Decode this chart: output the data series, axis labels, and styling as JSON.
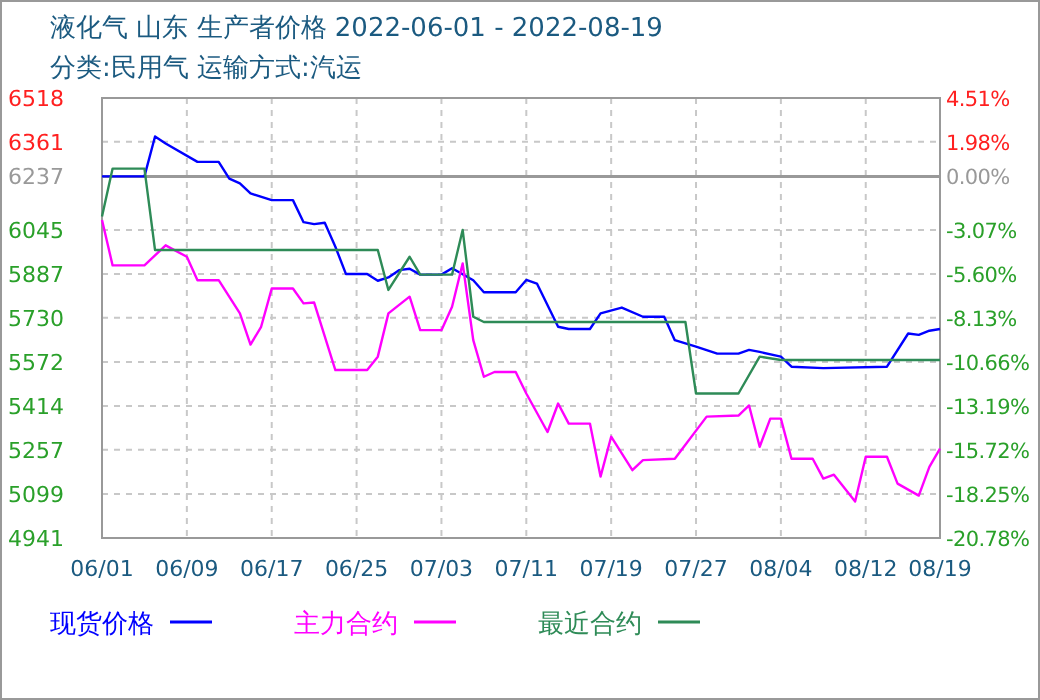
{
  "chart_data": {
    "type": "line",
    "title": "液化气 山东 生产者价格 2022-06-01 - 2022-08-19",
    "subtitle": "分类:民用气 运输方式:汽运",
    "xlim": [
      "2022-06-01",
      "2022-08-19"
    ],
    "xticks": [
      {
        "value": "2022-06-01",
        "label": "06/01"
      },
      {
        "value": "2022-06-09",
        "label": "06/09"
      },
      {
        "value": "2022-06-17",
        "label": "06/17"
      },
      {
        "value": "2022-06-25",
        "label": "06/25"
      },
      {
        "value": "2022-07-03",
        "label": "07/03"
      },
      {
        "value": "2022-07-11",
        "label": "07/11"
      },
      {
        "value": "2022-07-19",
        "label": "07/19"
      },
      {
        "value": "2022-07-27",
        "label": "07/27"
      },
      {
        "value": "2022-08-04",
        "label": "08/04"
      },
      {
        "value": "2022-08-12",
        "label": "08/12"
      },
      {
        "value": "2022-08-19",
        "label": "08/19"
      }
    ],
    "ylim": [
      4941,
      6518
    ],
    "yticks": [
      4941,
      5099,
      5257,
      5414,
      5572,
      5730,
      5887,
      6045,
      6237,
      6361,
      6518
    ],
    "y2lim": [
      -20.78,
      4.51
    ],
    "y2ticks": [
      {
        "value": -20.78,
        "label": "-20.78%"
      },
      {
        "value": -18.25,
        "label": "-18.25%"
      },
      {
        "value": -15.72,
        "label": "-15.72%"
      },
      {
        "value": -13.19,
        "label": "-13.19%"
      },
      {
        "value": -10.66,
        "label": "-10.66%"
      },
      {
        "value": -8.13,
        "label": "-8.13%"
      },
      {
        "value": -5.6,
        "label": "-5.60%"
      },
      {
        "value": -3.07,
        "label": "-3.07%"
      },
      {
        "value": 0,
        "label": "0.00%"
      },
      {
        "value": 1.98,
        "label": "1.98%"
      },
      {
        "value": 4.51,
        "label": "4.51%"
      }
    ],
    "ref_lines": [
      {
        "axis": "y",
        "value": 6237,
        "color": "#999999",
        "line_style": "solid"
      }
    ],
    "grid": true,
    "legend": "bottom",
    "line_style": "solid",
    "marker": "none",
    "series": [
      {
        "name": "现货价格",
        "color": "#0000ff",
        "x": [
          "2022-06-01",
          "2022-06-05",
          "2022-06-06",
          "2022-06-07",
          "2022-06-10",
          "2022-06-12",
          "2022-06-13",
          "2022-06-14",
          "2022-06-15",
          "2022-06-17",
          "2022-06-19",
          "2022-06-20",
          "2022-06-21",
          "2022-06-22",
          "2022-06-23",
          "2022-06-24",
          "2022-06-26",
          "2022-06-27",
          "2022-06-28",
          "2022-06-29",
          "2022-06-30",
          "2022-07-01",
          "2022-07-03",
          "2022-07-04",
          "2022-07-06",
          "2022-07-07",
          "2022-07-10",
          "2022-07-11",
          "2022-07-12",
          "2022-07-14",
          "2022-07-15",
          "2022-07-17",
          "2022-07-18",
          "2022-07-20",
          "2022-07-22",
          "2022-07-24",
          "2022-07-25",
          "2022-07-27",
          "2022-07-29",
          "2022-07-31",
          "2022-08-01",
          "2022-08-02",
          "2022-08-04",
          "2022-08-05",
          "2022-08-08",
          "2022-08-14",
          "2022-08-16",
          "2022-08-17",
          "2022-08-18",
          "2022-08-19"
        ],
        "values": [
          6237,
          6237,
          6380,
          6355,
          6289,
          6289,
          6229,
          6212,
          6176,
          6152,
          6152,
          6073,
          6066,
          6071,
          5985,
          5887,
          5887,
          5863,
          5875,
          5901,
          5906,
          5885,
          5885,
          5908,
          5865,
          5822,
          5822,
          5866,
          5853,
          5698,
          5690,
          5690,
          5746,
          5767,
          5734,
          5734,
          5650,
          5627,
          5602,
          5602,
          5615,
          5608,
          5591,
          5555,
          5550,
          5555,
          5674,
          5669,
          5684,
          5690
        ]
      },
      {
        "name": "主力合约",
        "color": "#ff00ff",
        "x": [
          "2022-06-01",
          "2022-06-02",
          "2022-06-05",
          "2022-06-07",
          "2022-06-09",
          "2022-06-10",
          "2022-06-12",
          "2022-06-14",
          "2022-06-15",
          "2022-06-16",
          "2022-06-17",
          "2022-06-19",
          "2022-06-20",
          "2022-06-21",
          "2022-06-23",
          "2022-06-26",
          "2022-06-27",
          "2022-06-28",
          "2022-06-30",
          "2022-07-01",
          "2022-07-03",
          "2022-07-04",
          "2022-07-05",
          "2022-07-06",
          "2022-07-07",
          "2022-07-08",
          "2022-07-10",
          "2022-07-11",
          "2022-07-13",
          "2022-07-14",
          "2022-07-15",
          "2022-07-17",
          "2022-07-18",
          "2022-07-19",
          "2022-07-21",
          "2022-07-22",
          "2022-07-25",
          "2022-07-28",
          "2022-07-31",
          "2022-08-01",
          "2022-08-02",
          "2022-08-03",
          "2022-08-04",
          "2022-08-05",
          "2022-08-07",
          "2022-08-08",
          "2022-08-09",
          "2022-08-11",
          "2022-08-12",
          "2022-08-14",
          "2022-08-15",
          "2022-08-17",
          "2022-08-18",
          "2022-08-19"
        ],
        "values": [
          6081,
          5918,
          5918,
          5990,
          5949,
          5865,
          5865,
          5746,
          5634,
          5698,
          5835,
          5835,
          5782,
          5785,
          5543,
          5543,
          5591,
          5746,
          5806,
          5686,
          5686,
          5770,
          5925,
          5650,
          5519,
          5536,
          5536,
          5459,
          5321,
          5423,
          5351,
          5351,
          5161,
          5304,
          5184,
          5220,
          5225,
          5376,
          5380,
          5416,
          5268,
          5369,
          5369,
          5225,
          5225,
          5154,
          5168,
          5072,
          5232,
          5232,
          5136,
          5093,
          5196,
          5261
        ]
      },
      {
        "name": "最近合约",
        "color": "#2e8b57",
        "x": [
          "2022-06-01",
          "2022-06-02",
          "2022-06-05",
          "2022-06-06",
          "2022-06-27",
          "2022-06-28",
          "2022-06-30",
          "2022-07-01",
          "2022-07-04",
          "2022-07-05",
          "2022-07-06",
          "2022-07-07",
          "2022-07-26",
          "2022-07-27",
          "2022-07-31",
          "2022-08-02",
          "2022-08-04",
          "2022-08-19"
        ],
        "values": [
          6093,
          6265,
          6265,
          5973,
          5973,
          5830,
          5949,
          5885,
          5885,
          6045,
          5734,
          5715,
          5715,
          5459,
          5459,
          5591,
          5579,
          5579
        ]
      }
    ]
  }
}
